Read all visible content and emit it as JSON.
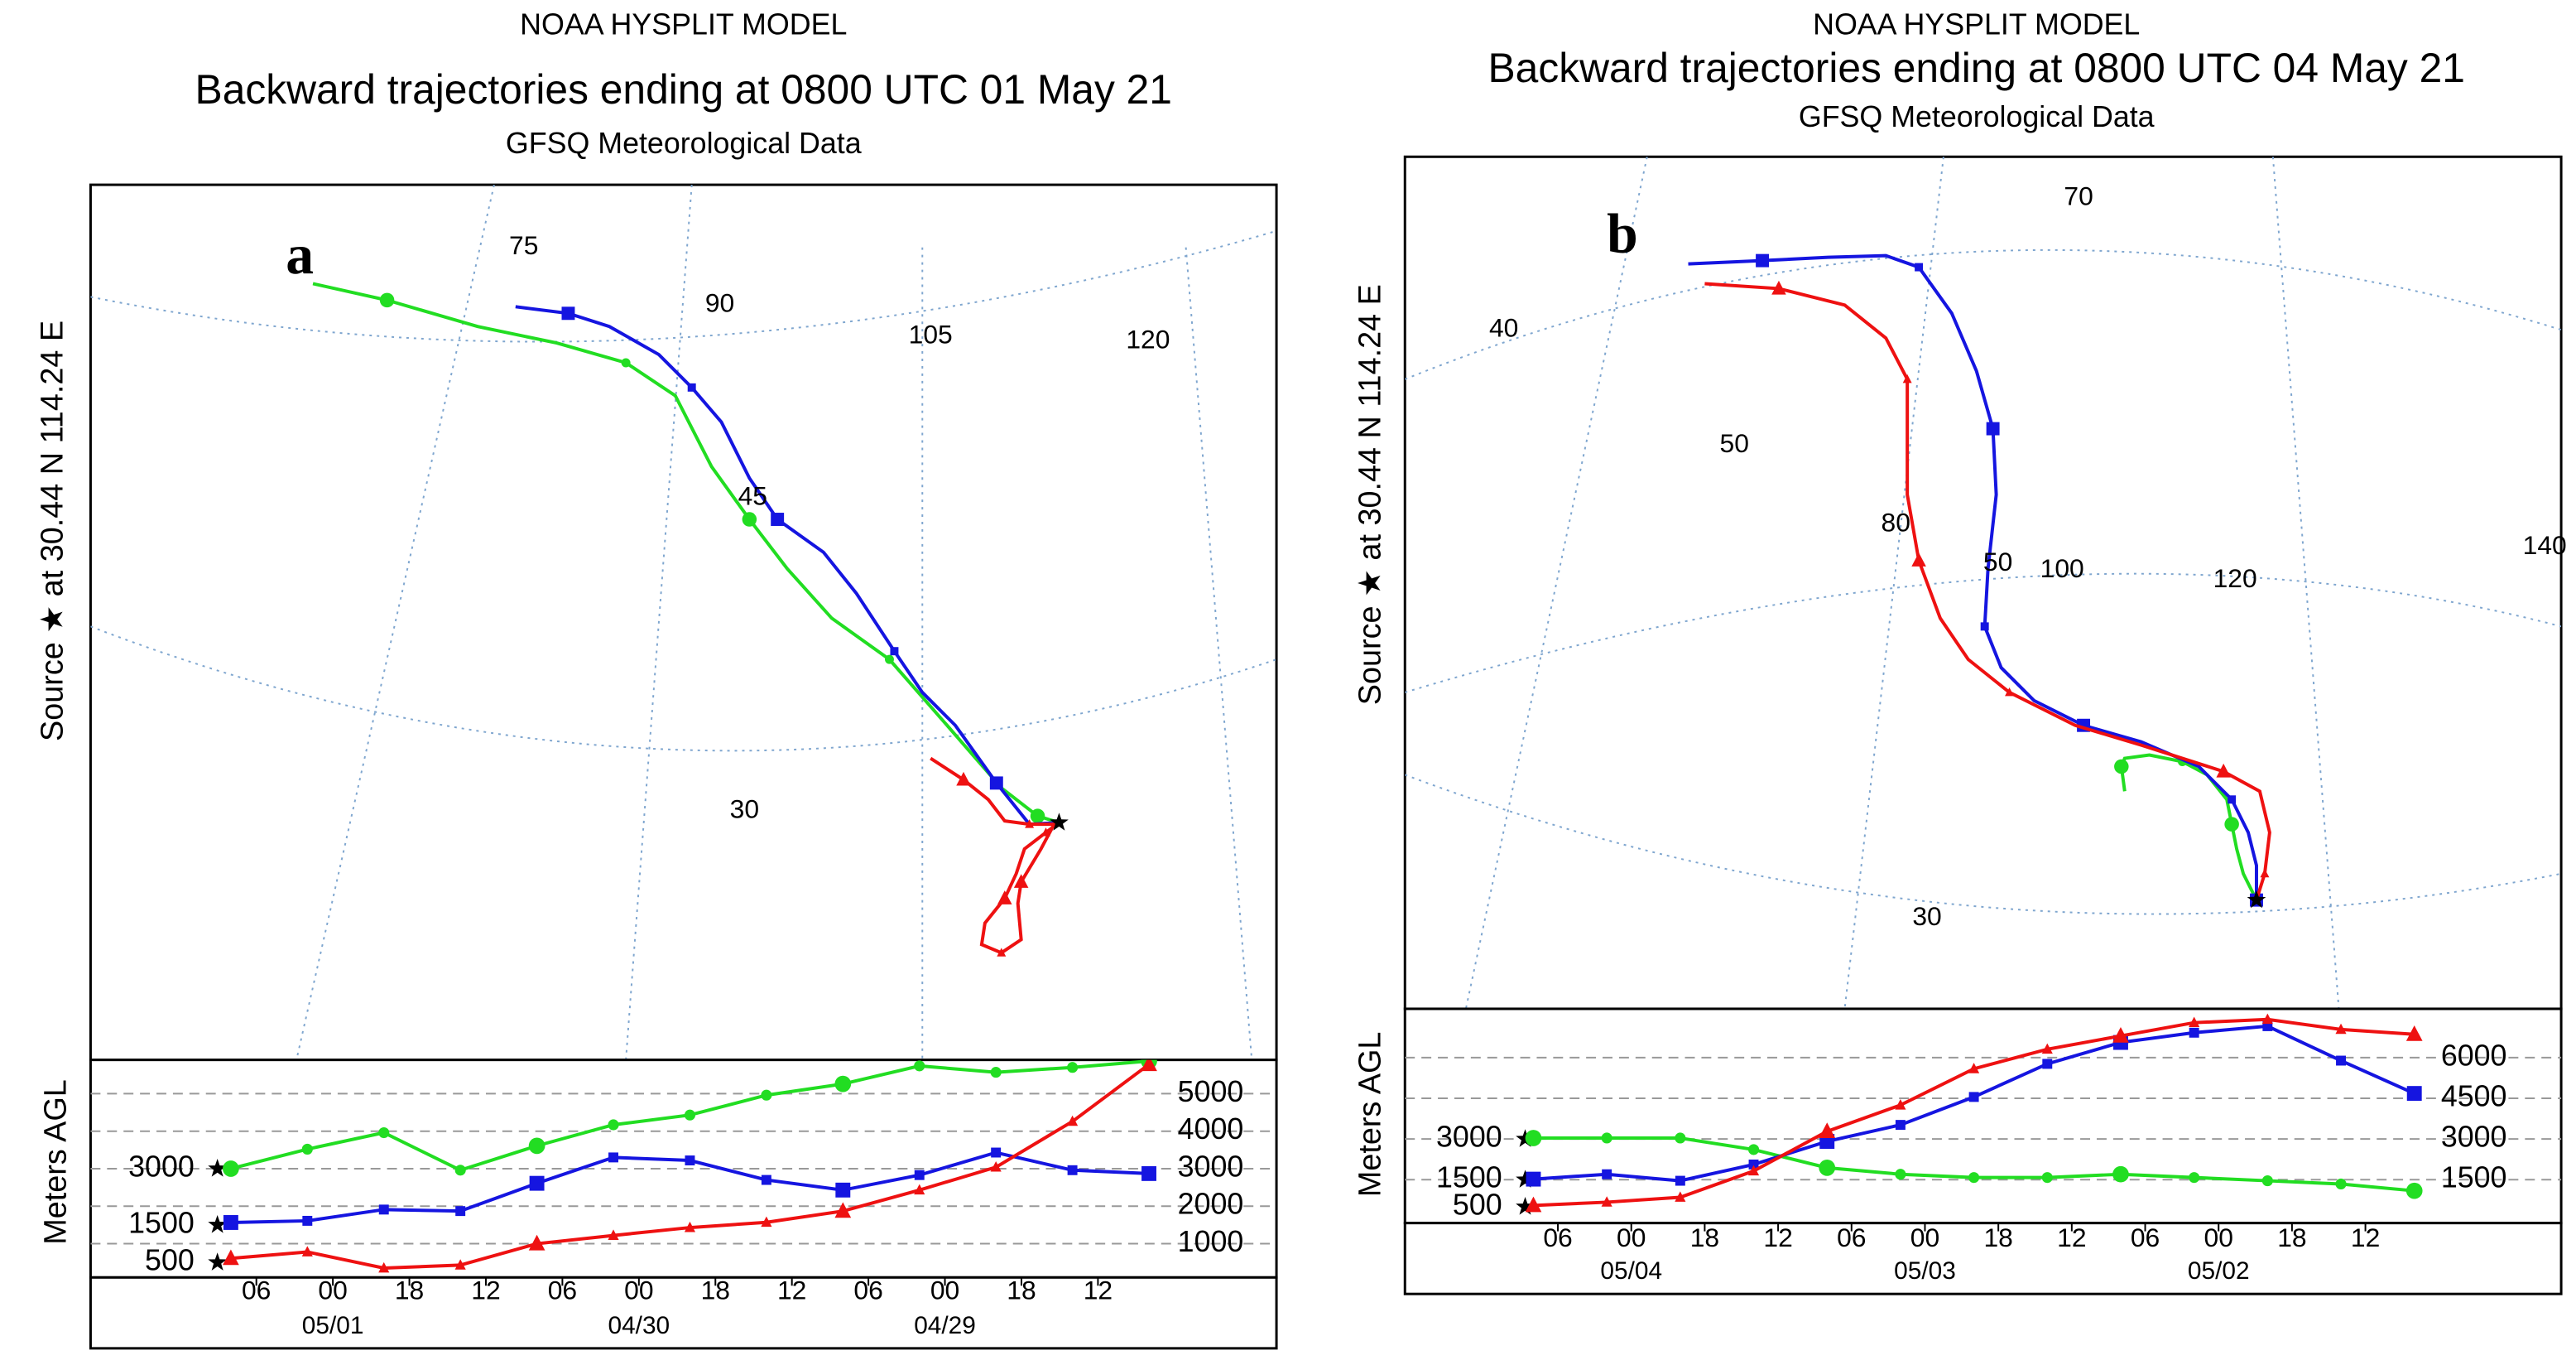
{
  "chart_data": [
    {
      "type": "line",
      "panel_label": "a",
      "title": "NOAA HYSPLIT MODEL",
      "subtitle": "Backward trajectories ending at 0800 UTC 01 May 21",
      "meteorology": "GFSQ Meteorological Data",
      "source_label": "Source ★ at 30.44 N 114.24 E",
      "y_label": "Meters AGL",
      "map_labels": [
        "75",
        "90",
        "105",
        "120",
        "45",
        "30"
      ],
      "x": [
        0,
        6,
        12,
        18,
        24,
        30,
        36,
        42,
        48,
        54,
        60,
        66,
        72
      ],
      "xlim": [
        -11,
        82
      ],
      "ylim": [
        100,
        5900
      ],
      "yticks": [
        1000,
        2000,
        3000,
        4000,
        5000
      ],
      "grid": true,
      "start_heights": [
        3000,
        1500,
        500
      ],
      "xticks": [
        {
          "value": 2,
          "label": "06"
        },
        {
          "value": 8,
          "label": "00"
        },
        {
          "value": 14,
          "label": "18"
        },
        {
          "value": 20,
          "label": "12"
        },
        {
          "value": 26,
          "label": "06"
        },
        {
          "value": 32,
          "label": "00"
        },
        {
          "value": 38,
          "label": "18"
        },
        {
          "value": 44,
          "label": "12"
        },
        {
          "value": 50,
          "label": "06"
        },
        {
          "value": 56,
          "label": "00"
        },
        {
          "value": 62,
          "label": "18"
        },
        {
          "value": 68,
          "label": "12"
        }
      ],
      "date_labels": [
        {
          "value": 8,
          "label": "05/01"
        },
        {
          "value": 32,
          "label": "04/30"
        },
        {
          "value": 56,
          "label": "04/29"
        }
      ],
      "series": [
        {
          "color": "#22dd22",
          "marker": "circle",
          "values": [
            3000,
            3520,
            3960,
            2960,
            3610,
            4170,
            4430,
            4960,
            5260,
            5740,
            5570,
            5700,
            5870
          ]
        },
        {
          "color": "#1515e0",
          "marker": "square",
          "values": [
            1565,
            1610,
            1910,
            1870,
            2610,
            3300,
            3220,
            2700,
            2430,
            2830,
            3430,
            2960,
            2870
          ]
        },
        {
          "color": "#ee1111",
          "marker": "triangle",
          "values": [
            610,
            780,
            350,
            430,
            1000,
            1220,
            1430,
            1570,
            1870,
            2430,
            3040,
            4260,
            5780
          ]
        }
      ]
    },
    {
      "type": "line",
      "panel_label": "b",
      "title": "NOAA HYSPLIT MODEL",
      "subtitle": "Backward trajectories ending at 0800 UTC 04 May 21",
      "meteorology": "GFSQ Meteorological Data",
      "source_label": "Source ★ at 30.44 N 114.24 E",
      "y_label": "Meters AGL",
      "map_labels": [
        "70",
        "40",
        "50",
        "80",
        "50",
        "100",
        "120",
        "140",
        "30"
      ],
      "x": [
        0,
        6,
        12,
        18,
        24,
        30,
        36,
        42,
        48,
        54,
        60,
        66,
        72
      ],
      "xlim": [
        -10.5,
        84
      ],
      "ylim": [
        -100,
        7800
      ],
      "yticks": [
        1500,
        3000,
        4500,
        6000
      ],
      "grid": true,
      "start_heights": [
        3000,
        1500,
        500
      ],
      "xticks": [
        {
          "value": 2,
          "label": "06"
        },
        {
          "value": 8,
          "label": "00"
        },
        {
          "value": 14,
          "label": "18"
        },
        {
          "value": 20,
          "label": "12"
        },
        {
          "value": 26,
          "label": "06"
        },
        {
          "value": 32,
          "label": "00"
        },
        {
          "value": 38,
          "label": "18"
        },
        {
          "value": 44,
          "label": "12"
        },
        {
          "value": 50,
          "label": "06"
        },
        {
          "value": 56,
          "label": "00"
        },
        {
          "value": 62,
          "label": "18"
        },
        {
          "value": 68,
          "label": "12"
        }
      ],
      "date_labels": [
        {
          "value": 8,
          "label": "05/04"
        },
        {
          "value": 32,
          "label": "05/03"
        },
        {
          "value": 56,
          "label": "05/02"
        }
      ],
      "series": [
        {
          "color": "#22dd22",
          "marker": "circle",
          "values": [
            3035,
            3035,
            3035,
            2610,
            1940,
            1700,
            1580,
            1580,
            1700,
            1580,
            1460,
            1340,
            1090
          ]
        },
        {
          "color": "#1515e0",
          "marker": "square",
          "values": [
            1520,
            1700,
            1460,
            2060,
            2910,
            3520,
            4550,
            5770,
            6560,
            6920,
            7160,
            5890,
            4680
          ]
        },
        {
          "color": "#ee1111",
          "marker": "triangle",
          "values": [
            550,
            670,
            850,
            1820,
            3280,
            4250,
            5590,
            6310,
            6800,
            7290,
            7410,
            7040,
            6860
          ]
        }
      ]
    }
  ]
}
